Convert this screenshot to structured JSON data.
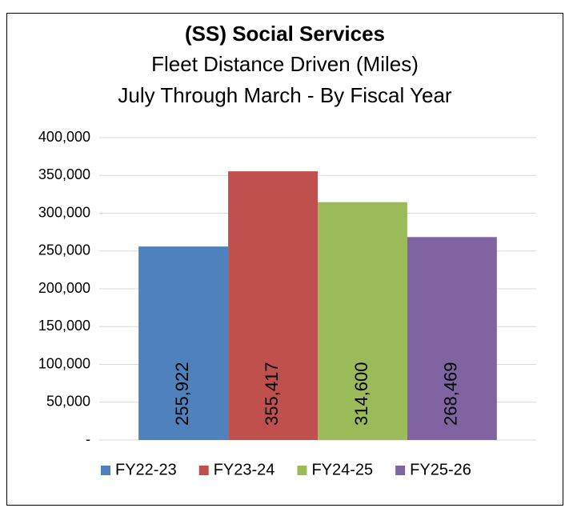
{
  "chart_data": {
    "type": "bar",
    "title": "(SS) Social Services",
    "subtitle": [
      "Fleet Distance Driven (Miles)",
      "July Through March - By Fiscal Year"
    ],
    "categories": [
      null
    ],
    "series": [
      {
        "name": "FY22-23",
        "color": "#4f81bd",
        "values": [
          255922
        ],
        "value_labels": [
          "255,922"
        ]
      },
      {
        "name": "FY23-24",
        "color": "#c0504d",
        "values": [
          355417
        ],
        "value_labels": [
          "355,417"
        ]
      },
      {
        "name": "FY24-25",
        "color": "#9bbb59",
        "values": [
          314600
        ],
        "value_labels": [
          "314,600"
        ]
      },
      {
        "name": "FY25-26",
        "color": "#8064a2",
        "values": [
          268469
        ],
        "value_labels": [
          "268,469"
        ]
      }
    ],
    "ylim": [
      0,
      400000
    ],
    "yticks": [
      {
        "value": 0,
        "label": "-"
      },
      {
        "value": 50000,
        "label": "50,000"
      },
      {
        "value": 100000,
        "label": "100,000"
      },
      {
        "value": 150000,
        "label": "150,000"
      },
      {
        "value": 200000,
        "label": "200,000"
      },
      {
        "value": 250000,
        "label": "250,000"
      },
      {
        "value": 300000,
        "label": "300,000"
      },
      {
        "value": 350000,
        "label": "350,000"
      },
      {
        "value": 400000,
        "label": "400,000"
      }
    ],
    "grid": true,
    "legend": "bottom"
  }
}
